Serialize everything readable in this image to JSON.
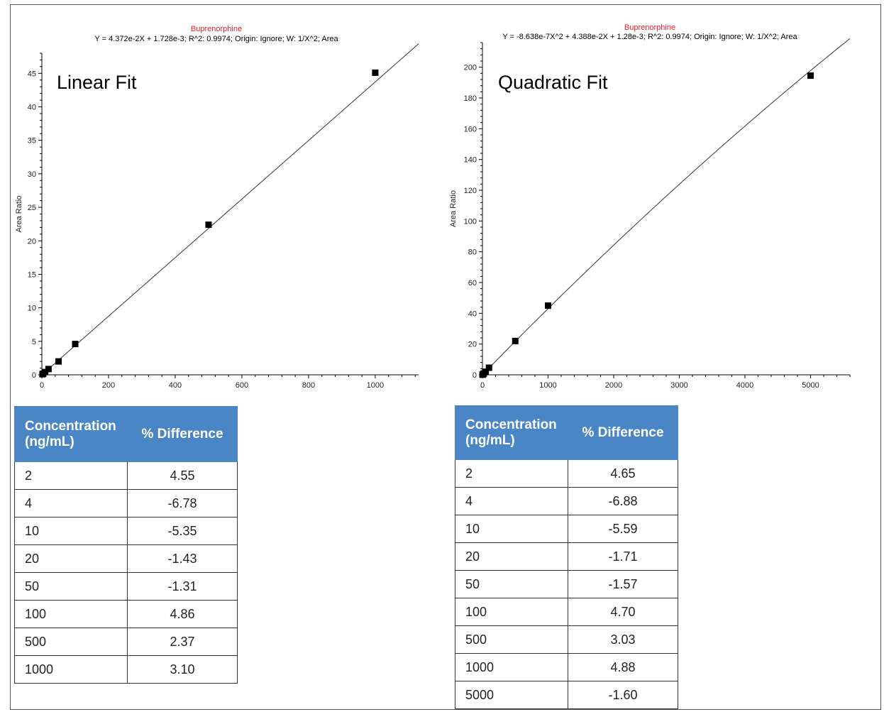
{
  "chart_data": [
    {
      "type": "scatter",
      "title": "Buprenorphine",
      "subtitle": "Y = 4.372e-2X + 1.728e-3; R^2: 0.9974; Origin: Ignore; W: 1/X^2; Area",
      "annotation": "Linear Fit",
      "xlabel": "",
      "ylabel": "Area Ratio",
      "xlim": [
        0,
        1130
      ],
      "ylim": [
        0,
        48
      ],
      "xticks": [
        0,
        200,
        400,
        600,
        800,
        1000
      ],
      "yticks": [
        0,
        5,
        10,
        15,
        20,
        25,
        30,
        35,
        40,
        45
      ],
      "x": [
        2,
        4,
        10,
        20,
        50,
        100,
        500,
        1000
      ],
      "y": [
        0.09,
        0.17,
        0.41,
        0.86,
        2.0,
        4.6,
        22.4,
        45.1
      ],
      "fit": {
        "model": "linear",
        "a": 0.04372,
        "b": 0.001728
      },
      "grid": false,
      "marker_color": "#000000",
      "line_color": "#333333"
    },
    {
      "type": "scatter",
      "title": "Buprenorphine",
      "subtitle": "Y = -8.638e-7X^2 + 4.388e-2X + 1.28e-3; R^2: 0.9974; Origin: Ignore; W: 1/X^2; Area",
      "annotation": "Quadratic Fit",
      "xlabel": "",
      "ylabel": "Area Ratio",
      "xlim": [
        0,
        5600
      ],
      "ylim": [
        0,
        216
      ],
      "xticks": [
        0,
        1000,
        2000,
        3000,
        4000,
        5000
      ],
      "yticks": [
        0,
        20,
        40,
        60,
        80,
        100,
        120,
        140,
        160,
        180,
        200
      ],
      "x": [
        2,
        4,
        10,
        20,
        50,
        100,
        500,
        1000,
        5000
      ],
      "y": [
        0.09,
        0.17,
        0.41,
        0.86,
        2.0,
        4.6,
        22.0,
        45.0,
        194.5
      ],
      "fit": {
        "model": "quadratic",
        "a": -8.638e-07,
        "b": 0.04388,
        "c": 0.00128
      },
      "grid": false,
      "marker_color": "#000000",
      "line_color": "#333333"
    }
  ],
  "tables": [
    {
      "header": [
        "Concentration (ng/mL)",
        "% Difference"
      ],
      "rows": [
        [
          "2",
          "4.55"
        ],
        [
          "4",
          "-6.78"
        ],
        [
          "10",
          "-5.35"
        ],
        [
          "20",
          "-1.43"
        ],
        [
          "50",
          "-1.31"
        ],
        [
          "100",
          "4.86"
        ],
        [
          "500",
          "2.37"
        ],
        [
          "1000",
          "3.10"
        ]
      ]
    },
    {
      "header": [
        "Concentration (ng/mL)",
        "% Difference"
      ],
      "rows": [
        [
          "2",
          "4.65"
        ],
        [
          "4",
          "-6.88"
        ],
        [
          "10",
          "-5.59"
        ],
        [
          "20",
          "-1.71"
        ],
        [
          "50",
          "-1.57"
        ],
        [
          "100",
          "4.70"
        ],
        [
          "500",
          "3.03"
        ],
        [
          "1000",
          "4.88"
        ],
        [
          "5000",
          "-1.60"
        ]
      ]
    }
  ],
  "colors": {
    "table_header_bg": "#4a86c5",
    "title_red": "#e8202a"
  }
}
